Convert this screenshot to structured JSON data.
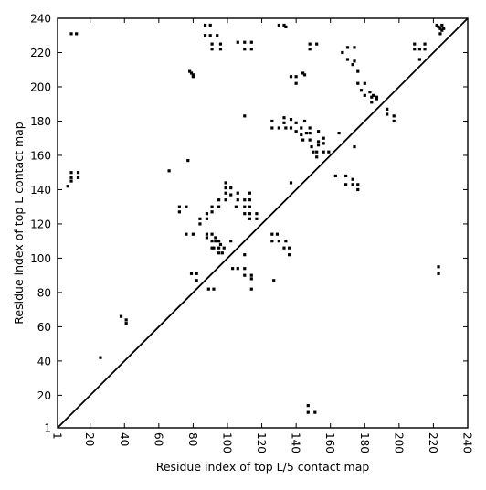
{
  "chart_data": {
    "type": "scatter",
    "title": "",
    "xlabel": "Residue index of top L/5 contact map",
    "ylabel": "Residue index of top L contact map",
    "xlim": [
      1,
      240
    ],
    "ylim": [
      1,
      240
    ],
    "grid": false,
    "legend": "none",
    "marker": "square",
    "colors": {
      "points": "#000000",
      "diagonal": "#000000",
      "axes": "#000000",
      "background": "#ffffff"
    },
    "x_ticks": [
      1,
      20,
      40,
      60,
      80,
      100,
      120,
      140,
      160,
      180,
      200,
      220,
      240
    ],
    "x_tick_labels": [
      "1",
      "20",
      "40",
      "60",
      "80",
      "100",
      "120",
      "140",
      "160",
      "180",
      "200",
      "220",
      "240"
    ],
    "y_ticks": [
      1,
      20,
      40,
      60,
      80,
      100,
      120,
      140,
      160,
      180,
      200,
      220,
      240
    ],
    "y_tick_labels": [
      "1",
      "20",
      "40",
      "60",
      "80",
      "100",
      "120",
      "140",
      "160",
      "180",
      "200",
      "220",
      "240"
    ],
    "diagonal": {
      "from": [
        1,
        1
      ],
      "to": [
        240,
        240
      ]
    },
    "series": [
      {
        "points": [
          [
            9,
            231
          ],
          [
            12,
            231
          ],
          [
            87,
            236
          ],
          [
            90,
            236
          ],
          [
            87,
            230
          ],
          [
            90,
            230
          ],
          [
            94,
            230
          ],
          [
            91,
            225
          ],
          [
            91,
            222
          ],
          [
            96,
            225
          ],
          [
            96,
            222
          ],
          [
            106,
            226
          ],
          [
            110,
            226
          ],
          [
            110,
            222
          ],
          [
            114,
            226
          ],
          [
            114,
            222
          ],
          [
            130,
            236
          ],
          [
            133,
            236
          ],
          [
            134,
            235
          ],
          [
            148,
            225
          ],
          [
            148,
            222
          ],
          [
            152,
            225
          ],
          [
            78,
            209
          ],
          [
            79,
            208
          ],
          [
            80,
            207
          ],
          [
            80,
            206
          ],
          [
            144,
            208
          ],
          [
            145,
            207
          ],
          [
            137,
            206
          ],
          [
            140,
            206
          ],
          [
            140,
            202
          ],
          [
            110,
            183
          ],
          [
            126,
            180
          ],
          [
            126,
            176
          ],
          [
            130,
            176
          ],
          [
            133,
            182
          ],
          [
            133,
            179
          ],
          [
            134,
            176
          ],
          [
            137,
            181
          ],
          [
            137,
            176
          ],
          [
            140,
            179
          ],
          [
            140,
            174
          ],
          [
            143,
            176
          ],
          [
            143,
            172
          ],
          [
            144,
            169
          ],
          [
            146,
            173
          ],
          [
            145,
            180
          ],
          [
            148,
            176
          ],
          [
            148,
            173
          ],
          [
            148,
            169
          ],
          [
            149,
            165
          ],
          [
            150,
            162
          ],
          [
            152,
            162
          ],
          [
            152,
            159
          ],
          [
            156,
            162
          ],
          [
            153,
            174
          ],
          [
            156,
            167
          ],
          [
            153,
            168
          ],
          [
            7,
            142
          ],
          [
            9,
            147
          ],
          [
            9,
            145
          ],
          [
            13,
            147
          ],
          [
            13,
            150
          ],
          [
            9,
            150
          ],
          [
            66,
            151
          ],
          [
            77,
            157
          ],
          [
            72,
            130
          ],
          [
            72,
            127
          ],
          [
            76,
            130
          ],
          [
            76,
            114
          ],
          [
            80,
            114
          ],
          [
            84,
            123
          ],
          [
            84,
            120
          ],
          [
            88,
            126
          ],
          [
            88,
            123
          ],
          [
            88,
            114
          ],
          [
            88,
            112
          ],
          [
            91,
            130
          ],
          [
            91,
            127
          ],
          [
            91,
            114
          ],
          [
            91,
            110
          ],
          [
            95,
            134
          ],
          [
            95,
            130
          ],
          [
            93,
            112
          ],
          [
            93,
            110
          ],
          [
            95,
            110
          ],
          [
            96,
            108
          ],
          [
            99,
            144
          ],
          [
            99,
            141
          ],
          [
            99,
            138
          ],
          [
            99,
            134
          ],
          [
            102,
            141
          ],
          [
            102,
            137
          ],
          [
            106,
            138
          ],
          [
            106,
            134
          ],
          [
            105,
            130
          ],
          [
            110,
            134
          ],
          [
            110,
            130
          ],
          [
            110,
            126
          ],
          [
            113,
            138
          ],
          [
            113,
            134
          ],
          [
            113,
            130
          ],
          [
            113,
            126
          ],
          [
            113,
            123
          ],
          [
            117,
            126
          ],
          [
            117,
            123
          ],
          [
            95,
            103
          ],
          [
            97,
            103
          ],
          [
            95,
            106
          ],
          [
            98,
            106
          ],
          [
            102,
            110
          ],
          [
            91,
            106
          ],
          [
            92,
            106
          ],
          [
            103,
            94
          ],
          [
            106,
            94
          ],
          [
            110,
            94
          ],
          [
            110,
            90
          ],
          [
            114,
            90
          ],
          [
            114,
            88
          ],
          [
            114,
            82
          ],
          [
            110,
            102
          ],
          [
            79,
            91
          ],
          [
            82,
            91
          ],
          [
            82,
            87
          ],
          [
            89,
            82
          ],
          [
            92,
            82
          ],
          [
            126,
            110
          ],
          [
            126,
            114
          ],
          [
            129,
            114
          ],
          [
            130,
            110
          ],
          [
            134,
            110
          ],
          [
            136,
            106
          ],
          [
            136,
            102
          ],
          [
            133,
            106
          ],
          [
            127,
            87
          ],
          [
            137,
            144
          ],
          [
            38,
            66
          ],
          [
            41,
            64
          ],
          [
            41,
            62
          ],
          [
            26,
            42
          ],
          [
            163,
            148
          ],
          [
            165,
            173
          ],
          [
            167,
            220
          ],
          [
            170,
            223
          ],
          [
            170,
            216
          ],
          [
            174,
            223
          ],
          [
            173,
            213
          ],
          [
            174,
            215
          ],
          [
            176,
            209
          ],
          [
            176,
            202
          ],
          [
            178,
            198
          ],
          [
            180,
            202
          ],
          [
            180,
            195
          ],
          [
            183,
            197
          ],
          [
            184,
            194
          ],
          [
            184,
            191
          ],
          [
            187,
            193
          ],
          [
            187,
            194
          ],
          [
            185,
            195
          ],
          [
            193,
            187
          ],
          [
            193,
            184
          ],
          [
            197,
            183
          ],
          [
            197,
            180
          ],
          [
            174,
            165
          ],
          [
            169,
            148
          ],
          [
            169,
            143
          ],
          [
            173,
            146
          ],
          [
            173,
            143
          ],
          [
            176,
            143
          ],
          [
            176,
            140
          ],
          [
            159,
            162
          ],
          [
            156,
            170
          ],
          [
            153,
            166
          ],
          [
            209,
            222
          ],
          [
            209,
            225
          ],
          [
            212,
            222
          ],
          [
            212,
            216
          ],
          [
            215,
            222
          ],
          [
            215,
            225
          ],
          [
            222,
            236
          ],
          [
            223,
            235
          ],
          [
            224,
            234
          ],
          [
            225,
            233
          ],
          [
            226,
            234
          ],
          [
            225,
            236
          ],
          [
            224,
            231
          ],
          [
            223,
            95
          ],
          [
            223,
            91
          ],
          [
            147,
            14
          ],
          [
            147,
            10
          ],
          [
            151,
            10
          ]
        ]
      }
    ]
  }
}
